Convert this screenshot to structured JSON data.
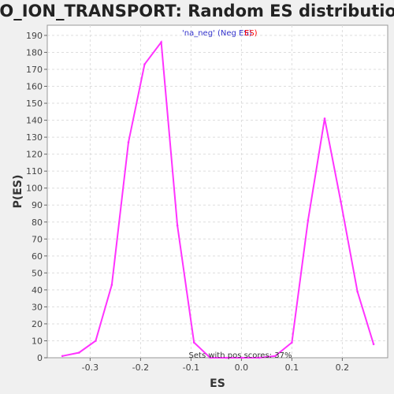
{
  "chart_data": {
    "type": "line",
    "title": "GO_ION_TRANSPORT: Random ES distribution",
    "xlabel": "ES",
    "ylabel": "P(ES)",
    "xlim": [
      -0.385,
      0.29
    ],
    "ylim": [
      0,
      196
    ],
    "x_ticks": [
      -0.3,
      -0.2,
      -0.1,
      0.0,
      0.1,
      0.2
    ],
    "x_tick_labels": [
      "-0.3",
      "-0.2",
      "-0.1",
      "0.0",
      "0.1",
      "0.2"
    ],
    "y_ticks": [
      0,
      10,
      20,
      30,
      40,
      50,
      60,
      70,
      80,
      90,
      100,
      110,
      120,
      130,
      140,
      150,
      160,
      170,
      180,
      190
    ],
    "grid": true,
    "series": [
      {
        "name": "'na_neg' (Neg ES)",
        "color": "#ff33ff",
        "x": [
          -0.355,
          -0.322,
          -0.289,
          -0.257,
          -0.224,
          -0.192,
          -0.159,
          -0.127,
          -0.094,
          -0.062,
          -0.03,
          0.002,
          0.035,
          0.067,
          0.1,
          0.132,
          0.165,
          0.197,
          0.23,
          0.262
        ],
        "values": [
          1,
          3,
          10,
          43,
          127,
          173,
          186,
          78,
          9,
          0,
          0,
          0,
          0,
          1,
          9,
          81,
          141,
          92,
          39,
          8
        ]
      }
    ],
    "legend": {
      "placement": "top-center",
      "text_blue": "'na_neg' (Neg ES)",
      "text_red": "ES)"
    },
    "annotation": "Sets with pos scores: 37%"
  },
  "colors": {
    "line": "#ff33ff",
    "legend_blue": "#3333cc",
    "legend_red": "#ff0000",
    "plot_bg": "#ffffff",
    "page_bg": "#f0f0f0"
  }
}
